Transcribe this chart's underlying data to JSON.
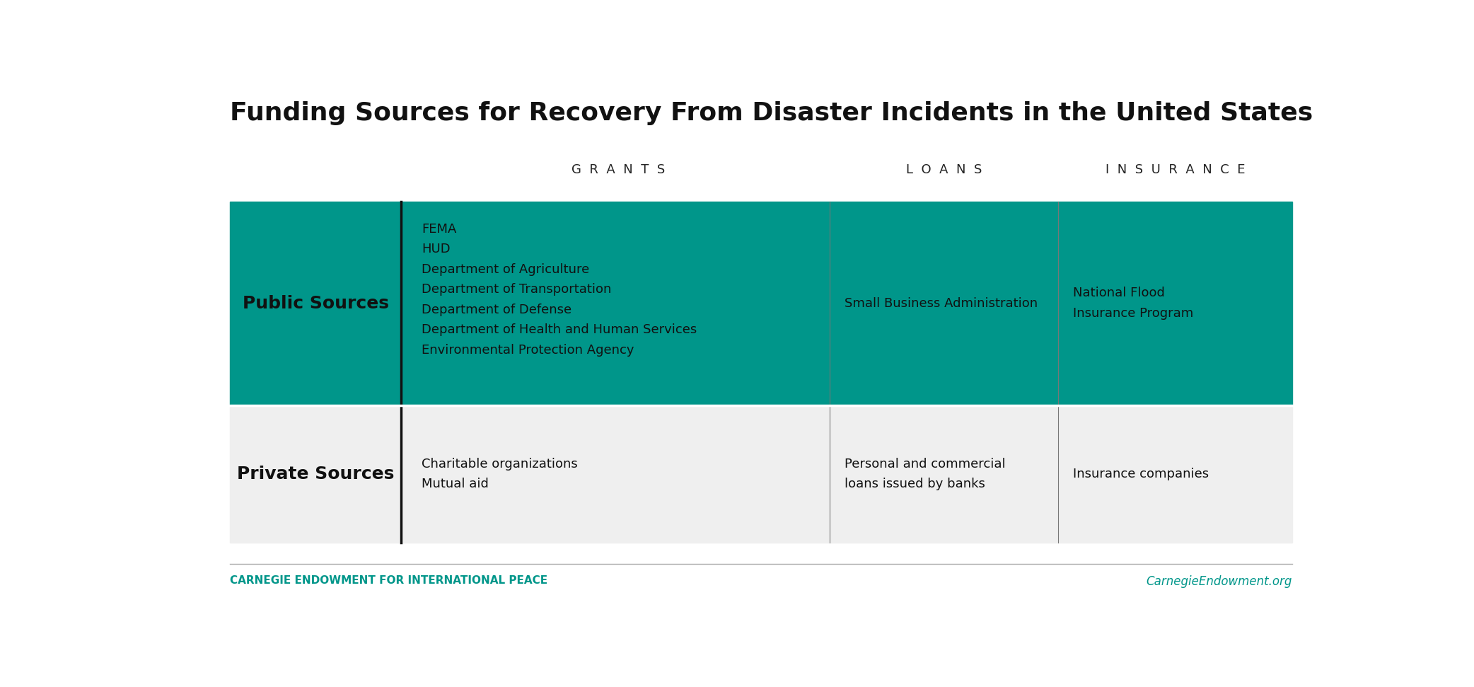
{
  "title": "Funding Sources for Recovery From Disaster Incidents in the United States",
  "title_fontsize": 26,
  "title_fontweight": "bold",
  "background_color": "#ffffff",
  "teal_color": "#00968A",
  "light_gray_color": "#efefef",
  "column_headers": [
    "G  R  A  N  T  S",
    "L  O  A  N  S",
    "I  N  S  U  R  A  N  C  E"
  ],
  "header_fontsize": 13,
  "row_label_fontsize": 18,
  "row_label_fontweight": "bold",
  "public_grants": "FEMA\nHUD\nDepartment of Agriculture\nDepartment of Transportation\nDepartment of Defense\nDepartment of Health and Human Services\nEnvironmental Protection Agency",
  "public_loans": "Small Business Administration",
  "public_insurance": "National Flood\nInsurance Program",
  "private_grants": "Charitable organizations\nMutual aid",
  "private_loans": "Personal and commercial\nloans issued by banks",
  "private_insurance": "Insurance companies",
  "cell_fontsize": 13,
  "footer_left": "CARNEGIE ENDOWMENT FOR INTERNATIONAL PEACE",
  "footer_right": "CarnegieEndowment.org",
  "footer_color": "#00968A",
  "footer_fontsize": 11
}
